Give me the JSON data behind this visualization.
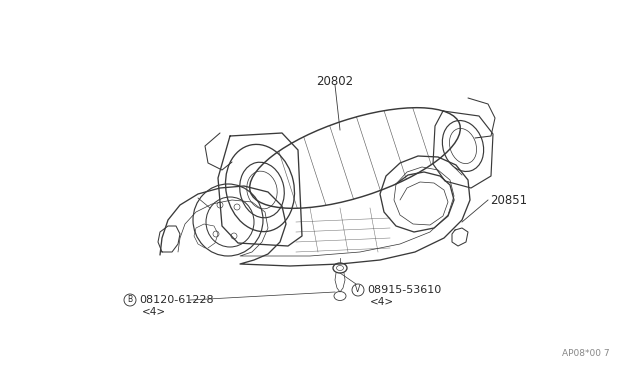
{
  "bg_color": "#ffffff",
  "line_color": "#3a3a3a",
  "text_color": "#2a2a2a",
  "label_color": "#2a2a2a",
  "watermark": "AP08*00 7",
  "fig_width": 6.4,
  "fig_height": 3.72,
  "dpi": 100,
  "lw": 0.75,
  "label_20802": "20802",
  "label_20851": "20851",
  "label_B": "B",
  "label_bolt_B": "08120-61228",
  "label_B_qty": "<4>",
  "label_V": "V",
  "label_bolt_V": "08915-53610",
  "label_V_qty": "<4>"
}
